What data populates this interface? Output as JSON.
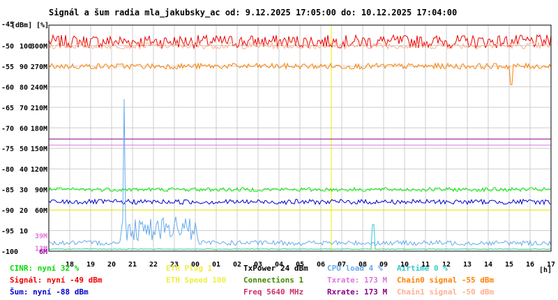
{
  "chart_data": {
    "type": "line",
    "title": "Signál a šum radia mla_jakubsky_ac od: 9.12.2025 17:05:00 do: 10.12.2025 17:04:00",
    "y_units": [
      "[dBm]",
      "[%]"
    ],
    "x_unit": "[h]",
    "xlim": [
      17,
      41
    ],
    "ylim": [
      -100,
      -45
    ],
    "grid": true,
    "x_ticks": [
      "18",
      "19",
      "20",
      "21",
      "22",
      "23",
      "00",
      "01",
      "02",
      "03",
      "04",
      "05",
      "06",
      "07",
      "08",
      "09",
      "10",
      "11",
      "12",
      "13",
      "14",
      "15",
      "16",
      "17"
    ],
    "y_ticks_dbm": [
      "-45",
      "-50",
      "-55",
      "-60",
      "-65",
      "-70",
      "-75",
      "-80",
      "-85",
      "-90",
      "-95",
      "-100"
    ],
    "y_ticks_pct": [
      "100",
      "90",
      "80",
      "70",
      "60",
      "50",
      "40",
      "30",
      "20",
      "10"
    ],
    "y_ticks_rate": [
      "300M",
      "270M",
      "240M",
      "210M",
      "180M",
      "150M",
      "120M",
      "90M",
      "60M"
    ],
    "y_extra_labels": [
      {
        "text": "39M",
        "color": "#dd77dd",
        "dbm": -96.2
      },
      {
        "text": "13M",
        "color": "#dd77dd",
        "dbm": -99.2
      },
      {
        "text": "6M",
        "color": "#990099",
        "dbm": -100
      }
    ],
    "marker_x": 13.5,
    "series": [
      {
        "name": "Signál",
        "color": "#ee0000",
        "level_dbm": -49,
        "noise": 1.6,
        "spikes": []
      },
      {
        "name": "Chain1 signal",
        "color": "#ffb090",
        "level_dbm": -50,
        "noise": 0.8,
        "spikes": []
      },
      {
        "name": "Chain0 signal",
        "color": "#ff8000",
        "level_dbm": -55,
        "noise": 0.7,
        "spikes": [
          {
            "x": 22.1,
            "dbm": -59.5
          }
        ]
      },
      {
        "name": "Txrate",
        "color": "#dd77dd",
        "level_dbm": -74.2,
        "noise": 0,
        "spikes": []
      },
      {
        "name": "Rxrate",
        "color": "#880088",
        "level_dbm": -72.7,
        "noise": 0,
        "spikes": []
      },
      {
        "name": "CINR",
        "color": "#00ee00",
        "level_dbm": -85,
        "noise": 0.5,
        "spikes": []
      },
      {
        "name": "Šum",
        "color": "#0000cc",
        "level_dbm": -88,
        "noise": 0.6,
        "spikes": []
      },
      {
        "name": "CPU load",
        "color": "#66aaee",
        "level_dbm": -98,
        "noise": 0.6,
        "burst": {
          "from": 3.4,
          "to": 7.1,
          "dbm": -94.5,
          "peak_x": 3.6,
          "peak_dbm": -63
        }
      },
      {
        "name": "Airtime",
        "color": "#33cccc",
        "level_dbm": -99.5,
        "noise": 0.1,
        "spikes": [
          {
            "x": 15.5,
            "dbm": -93.5
          }
        ]
      }
    ],
    "yellow_lines_dbm": [
      -90,
      -99.5
    ]
  },
  "legend": [
    {
      "text": "CINR: nyní 32 %",
      "color": "#00dd00",
      "col": 0,
      "row": 0
    },
    {
      "text": "Signál: nyní -49 dBm",
      "color": "#ee0000",
      "col": 0,
      "row": 1
    },
    {
      "text": "Šum: nyní -88 dBm",
      "color": "#0000cc",
      "col": 0,
      "row": 2
    },
    {
      "text": "ETH Plug 1",
      "color": "#eeee44",
      "col": 1,
      "row": 0
    },
    {
      "text": "ETH Speed 100",
      "color": "#eeee44",
      "col": 1,
      "row": 1
    },
    {
      "text": "TxPower 24 dBm",
      "color": "#000000",
      "col": 2,
      "row": 0
    },
    {
      "text": "Connections 1",
      "color": "#448800",
      "col": 2,
      "row": 1
    },
    {
      "text": "Freq 5640 MHz",
      "color": "#cc3366",
      "col": 2,
      "row": 2
    },
    {
      "text": "CPU load 4 %",
      "color": "#66aaee",
      "col": 3,
      "row": 0
    },
    {
      "text": "Txrate: 173 M",
      "color": "#dd77dd",
      "col": 3,
      "row": 1
    },
    {
      "text": "Rxrate: 173 M",
      "color": "#880088",
      "col": 3,
      "row": 2
    },
    {
      "text": "Airtime 0 %",
      "color": "#33cccc",
      "col": 4,
      "row": 0
    },
    {
      "text": "Chain0 signal -55 dBm",
      "color": "#ff8000",
      "col": 4,
      "row": 1
    },
    {
      "text": "Chain1 signal -50 dBm",
      "color": "#ffb090",
      "col": 4,
      "row": 2
    }
  ]
}
